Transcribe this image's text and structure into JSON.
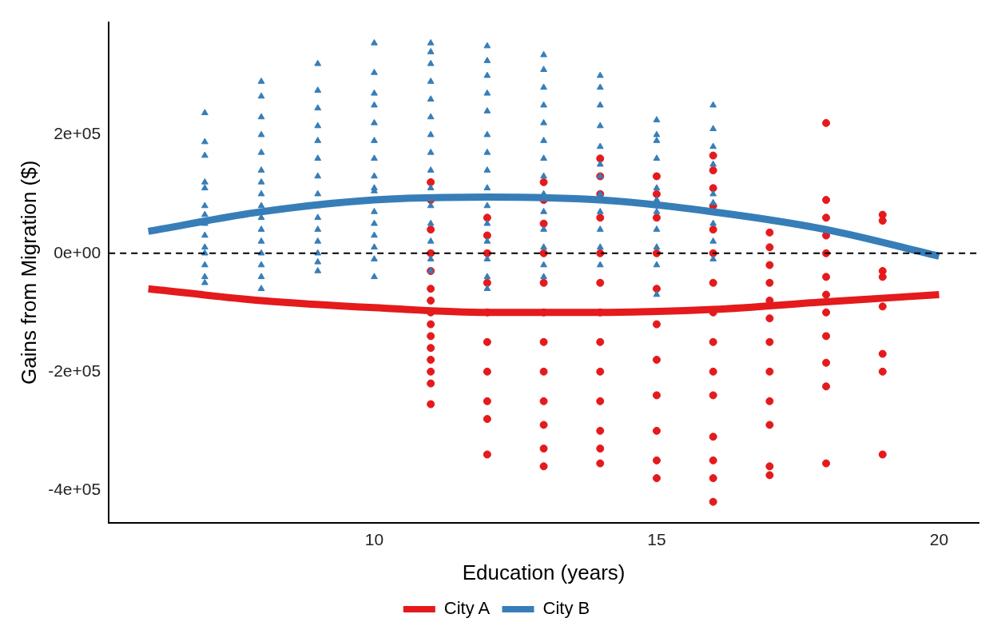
{
  "chart_data": {
    "type": "scatter",
    "xlabel": "Education (years)",
    "ylabel": "Gains from Migration ($)",
    "xlim": [
      5.3,
      20.7
    ],
    "xticks": [
      10,
      15,
      20
    ],
    "ylim": [
      -455000,
      390000
    ],
    "yticks": [
      {
        "value": -400000,
        "label": "-4e+05"
      },
      {
        "value": -200000,
        "label": "-2e+05"
      },
      {
        "value": 0,
        "label": "0e+00"
      },
      {
        "value": 200000,
        "label": "2e+05"
      }
    ],
    "grid": false,
    "legend": "bottom",
    "ref_lines": [
      {
        "axis": "y",
        "value": 0,
        "color": "#000000",
        "line_style": "dashed"
      }
    ],
    "series": [
      {
        "name": "City A",
        "type": "scatter",
        "marker": "circle",
        "color": "#e41a1c",
        "x": [
          11,
          11,
          11,
          11,
          11,
          11,
          11,
          11,
          11,
          11,
          11,
          11,
          11,
          11,
          11,
          12,
          12,
          12,
          12,
          12,
          12,
          12,
          12,
          12,
          12,
          13,
          13,
          13,
          13,
          13,
          13,
          13,
          13,
          13,
          13,
          13,
          13,
          14,
          14,
          14,
          14,
          14,
          14,
          14,
          14,
          14,
          14,
          14,
          14,
          14,
          15,
          15,
          15,
          15,
          15,
          15,
          15,
          15,
          15,
          15,
          15,
          16,
          16,
          16,
          16,
          16,
          16,
          16,
          16,
          16,
          16,
          16,
          16,
          16,
          16,
          16,
          17,
          17,
          17,
          17,
          17,
          17,
          17,
          17,
          17,
          17,
          17,
          17,
          18,
          18,
          18,
          18,
          18,
          18,
          18,
          18,
          18,
          18,
          18,
          18,
          19,
          19,
          19,
          19,
          19,
          19,
          19,
          19
        ],
        "values": [
          120000,
          90000,
          40000,
          0,
          -30000,
          -60000,
          -80000,
          -100000,
          -120000,
          -140000,
          -160000,
          -180000,
          -200000,
          -220000,
          -255000,
          60000,
          30000,
          0,
          -50000,
          -100000,
          -150000,
          -200000,
          -250000,
          -280000,
          -340000,
          120000,
          90000,
          50000,
          0,
          -50000,
          -100000,
          -150000,
          -200000,
          -250000,
          -290000,
          -330000,
          -360000,
          160000,
          130000,
          100000,
          60000,
          0,
          -50000,
          -100000,
          -150000,
          -200000,
          -250000,
          -300000,
          -330000,
          -355000,
          130000,
          100000,
          60000,
          0,
          -60000,
          -120000,
          -180000,
          -240000,
          -300000,
          -350000,
          -380000,
          165000,
          140000,
          110000,
          80000,
          40000,
          0,
          -50000,
          -100000,
          -150000,
          -200000,
          -240000,
          -310000,
          -350000,
          -380000,
          -420000,
          35000,
          10000,
          -20000,
          -50000,
          -80000,
          -110000,
          -150000,
          -200000,
          -250000,
          -290000,
          -360000,
          -375000,
          220000,
          90000,
          60000,
          30000,
          0,
          -40000,
          -70000,
          -100000,
          -140000,
          -185000,
          -225000,
          -355000,
          65000,
          55000,
          -30000,
          -40000,
          -90000,
          -170000,
          -200000,
          -340000
        ]
      },
      {
        "name": "City B",
        "type": "scatter",
        "marker": "triangle",
        "color": "#377eb8",
        "x": [
          7,
          7,
          7,
          7,
          7,
          7,
          7,
          7,
          7,
          7,
          7,
          7,
          7,
          7,
          8,
          8,
          8,
          8,
          8,
          8,
          8,
          8,
          8,
          8,
          8,
          8,
          8,
          8,
          8,
          8,
          9,
          9,
          9,
          9,
          9,
          9,
          9,
          9,
          9,
          9,
          9,
          9,
          9,
          9,
          9,
          10,
          10,
          10,
          10,
          10,
          10,
          10,
          10,
          10,
          10,
          10,
          10,
          10,
          10,
          10,
          10,
          11,
          11,
          11,
          11,
          11,
          11,
          11,
          11,
          11,
          11,
          11,
          11,
          11,
          11,
          11,
          12,
          12,
          12,
          12,
          12,
          12,
          12,
          12,
          12,
          12,
          12,
          12,
          12,
          12,
          12,
          13,
          13,
          13,
          13,
          13,
          13,
          13,
          13,
          13,
          13,
          13,
          13,
          13,
          13,
          14,
          14,
          14,
          14,
          14,
          14,
          14,
          14,
          14,
          14,
          14,
          14,
          15,
          15,
          15,
          15,
          15,
          15,
          15,
          15,
          15,
          15,
          15,
          16,
          16,
          16,
          16,
          16,
          16,
          16,
          16,
          16
        ],
        "values": [
          237000,
          188000,
          165000,
          120000,
          110000,
          80000,
          65000,
          50000,
          30000,
          10000,
          0,
          -20000,
          -40000,
          -50000,
          290000,
          265000,
          230000,
          200000,
          170000,
          140000,
          120000,
          100000,
          80000,
          60000,
          40000,
          20000,
          0,
          -20000,
          -40000,
          -60000,
          320000,
          275000,
          245000,
          215000,
          190000,
          160000,
          130000,
          100000,
          80000,
          60000,
          40000,
          20000,
          0,
          -15000,
          -30000,
          355000,
          305000,
          270000,
          250000,
          220000,
          190000,
          160000,
          130000,
          110000,
          105000,
          70000,
          50000,
          30000,
          10000,
          -10000,
          -40000,
          355000,
          340000,
          320000,
          290000,
          260000,
          230000,
          200000,
          170000,
          140000,
          110000,
          80000,
          50000,
          20000,
          -10000,
          -30000,
          350000,
          325000,
          300000,
          270000,
          240000,
          200000,
          170000,
          140000,
          110000,
          80000,
          50000,
          20000,
          -10000,
          -40000,
          -60000,
          335000,
          310000,
          280000,
          250000,
          220000,
          190000,
          160000,
          130000,
          100000,
          70000,
          40000,
          10000,
          -20000,
          -40000,
          300000,
          280000,
          250000,
          215000,
          180000,
          150000,
          130000,
          100000,
          70000,
          40000,
          10000,
          -20000,
          225000,
          200000,
          190000,
          160000,
          110000,
          90000,
          70000,
          40000,
          10000,
          -20000,
          -70000,
          250000,
          210000,
          180000,
          150000,
          100000,
          85000,
          50000,
          20000,
          -10000
        ]
      },
      {
        "type": "line",
        "marker": "none",
        "color": "#e41a1c",
        "x": [
          6,
          8,
          10,
          12,
          14,
          16,
          18,
          20
        ],
        "values": [
          -60000,
          -80000,
          -92000,
          -100000,
          -100000,
          -95000,
          -82000,
          -70000
        ]
      },
      {
        "type": "line",
        "marker": "none",
        "color": "#377eb8",
        "x": [
          6,
          8,
          10,
          12,
          14,
          16,
          18,
          20
        ],
        "values": [
          37000,
          70000,
          90000,
          95000,
          90000,
          70000,
          40000,
          -5000
        ]
      }
    ]
  }
}
